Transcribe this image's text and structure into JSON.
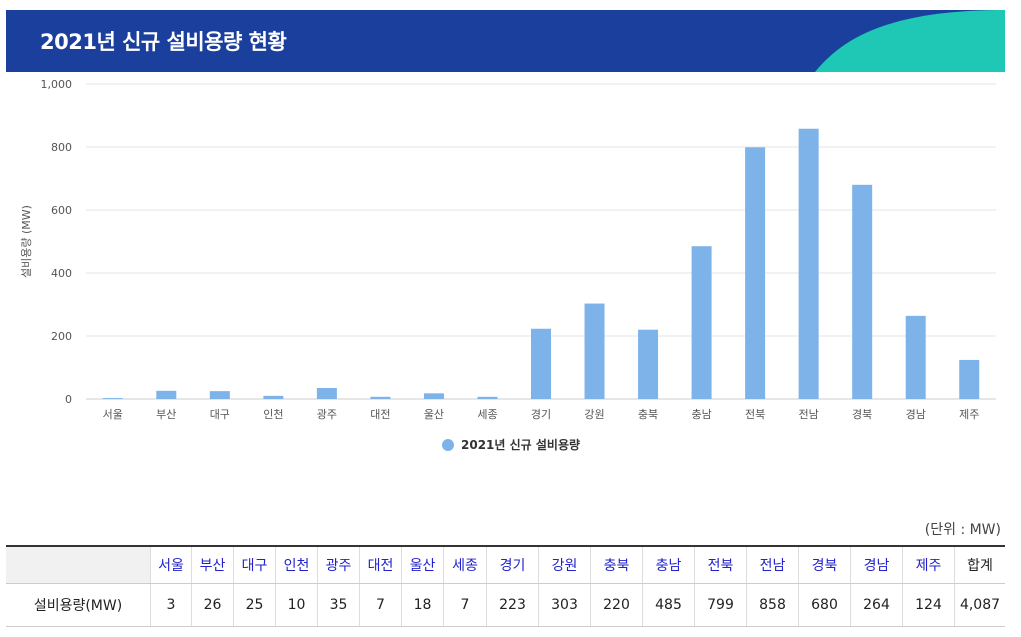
{
  "header": {
    "title": "2021년 신규 설비용량 현황"
  },
  "colors": {
    "header_bg": "#1b3f9c",
    "accent": "#1fc8b4",
    "bar": "#7eb3ea",
    "header_text": "#2222cc"
  },
  "chart_data": {
    "type": "bar",
    "title": "2021년 신규 설비용량 현황",
    "ylabel": "설비용량 (MW)",
    "xlabel": "",
    "ylim": [
      0,
      1000
    ],
    "yticks": [
      0,
      200,
      400,
      600,
      800,
      1000
    ],
    "ytick_labels": [
      "0",
      "200",
      "400",
      "600",
      "800",
      "1,000"
    ],
    "grid": true,
    "legend_position": "bottom-center",
    "categories": [
      "서울",
      "부산",
      "대구",
      "인천",
      "광주",
      "대전",
      "울산",
      "세종",
      "경기",
      "강원",
      "충북",
      "충남",
      "전북",
      "전남",
      "경북",
      "경남",
      "제주"
    ],
    "series": [
      {
        "name": "2021년 신규 설비용량",
        "values": [
          3,
          26,
          25,
          10,
          35,
          7,
          18,
          7,
          223,
          303,
          220,
          485,
          799,
          858,
          680,
          264,
          124
        ]
      }
    ]
  },
  "table": {
    "unit": "(단위 : MW)",
    "row_label": "설비용량(MW)",
    "total_label": "합계",
    "values": [
      "3",
      "26",
      "25",
      "10",
      "35",
      "7",
      "18",
      "7",
      "223",
      "303",
      "220",
      "485",
      "799",
      "858",
      "680",
      "264",
      "124"
    ],
    "total": "4,087"
  }
}
